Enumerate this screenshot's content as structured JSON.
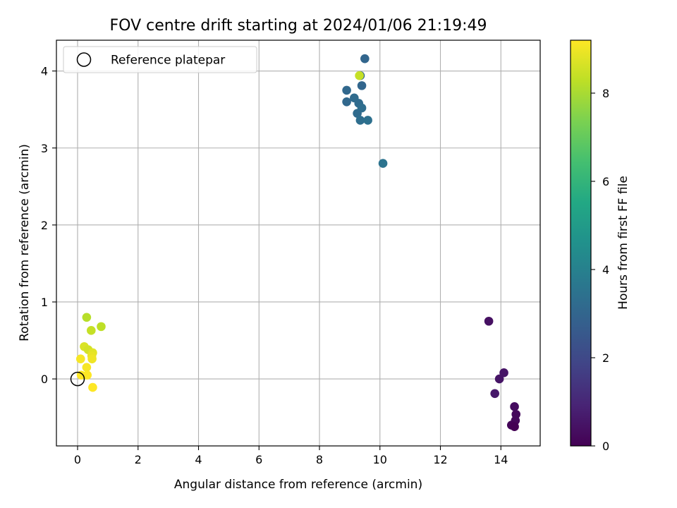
{
  "chart_data": {
    "type": "scatter",
    "title": "FOV centre drift starting at 2024/01/06 21:19:49",
    "xlabel": "Angular distance from reference (arcmin)",
    "ylabel": "Rotation from reference (arcmin)",
    "xlim": [
      -0.7,
      15.3
    ],
    "ylim": [
      -0.87,
      4.4
    ],
    "xticks": [
      0,
      2,
      4,
      6,
      8,
      10,
      12,
      14
    ],
    "yticks": [
      0,
      1,
      2,
      3,
      4
    ],
    "grid": true,
    "legend": {
      "position": "top-left",
      "entries": [
        "Reference platepar"
      ]
    },
    "reference": {
      "x": 0,
      "y": 0
    },
    "colorbar": {
      "label": "Hours from first FF file",
      "range": [
        0,
        9.2
      ],
      "ticks": [
        0,
        2,
        4,
        6,
        8
      ],
      "colormap": "viridis"
    },
    "points": [
      {
        "x": 13.6,
        "y": 0.75,
        "c": 0.4
      },
      {
        "x": 14.1,
        "y": 0.08,
        "c": 0.5
      },
      {
        "x": 13.95,
        "y": 0.0,
        "c": 0.5
      },
      {
        "x": 13.8,
        "y": -0.19,
        "c": 0.6
      },
      {
        "x": 14.45,
        "y": -0.36,
        "c": 0.3
      },
      {
        "x": 14.5,
        "y": -0.46,
        "c": 0.2
      },
      {
        "x": 14.48,
        "y": -0.54,
        "c": 0.2
      },
      {
        "x": 14.35,
        "y": -0.6,
        "c": 0.1
      },
      {
        "x": 14.45,
        "y": -0.62,
        "c": 0.0
      },
      {
        "x": 9.5,
        "y": 4.16,
        "c": 3.0
      },
      {
        "x": 9.35,
        "y": 3.94,
        "c": 3.1
      },
      {
        "x": 9.4,
        "y": 3.81,
        "c": 3.0
      },
      {
        "x": 8.9,
        "y": 3.75,
        "c": 3.1
      },
      {
        "x": 9.15,
        "y": 3.65,
        "c": 3.2
      },
      {
        "x": 8.9,
        "y": 3.6,
        "c": 3.1
      },
      {
        "x": 9.3,
        "y": 3.58,
        "c": 3.2
      },
      {
        "x": 9.4,
        "y": 3.52,
        "c": 3.3
      },
      {
        "x": 9.25,
        "y": 3.45,
        "c": 3.2
      },
      {
        "x": 9.35,
        "y": 3.36,
        "c": 3.3
      },
      {
        "x": 9.6,
        "y": 3.36,
        "c": 3.4
      },
      {
        "x": 10.1,
        "y": 2.8,
        "c": 3.5
      },
      {
        "x": 9.32,
        "y": 3.94,
        "c": 8.4
      },
      {
        "x": 0.3,
        "y": 0.8,
        "c": 8.2
      },
      {
        "x": 0.78,
        "y": 0.68,
        "c": 8.3
      },
      {
        "x": 0.45,
        "y": 0.63,
        "c": 8.4
      },
      {
        "x": 0.22,
        "y": 0.42,
        "c": 8.7
      },
      {
        "x": 0.35,
        "y": 0.38,
        "c": 8.6
      },
      {
        "x": 0.5,
        "y": 0.34,
        "c": 8.8
      },
      {
        "x": 0.47,
        "y": 0.3,
        "c": 8.9
      },
      {
        "x": 0.48,
        "y": 0.26,
        "c": 9.0
      },
      {
        "x": 0.1,
        "y": 0.26,
        "c": 9.1
      },
      {
        "x": 0.3,
        "y": 0.15,
        "c": 9.1
      },
      {
        "x": 0.12,
        "y": 0.05,
        "c": 9.2
      },
      {
        "x": 0.32,
        "y": 0.05,
        "c": 9.2
      },
      {
        "x": 0.5,
        "y": -0.11,
        "c": 9.2
      }
    ]
  }
}
